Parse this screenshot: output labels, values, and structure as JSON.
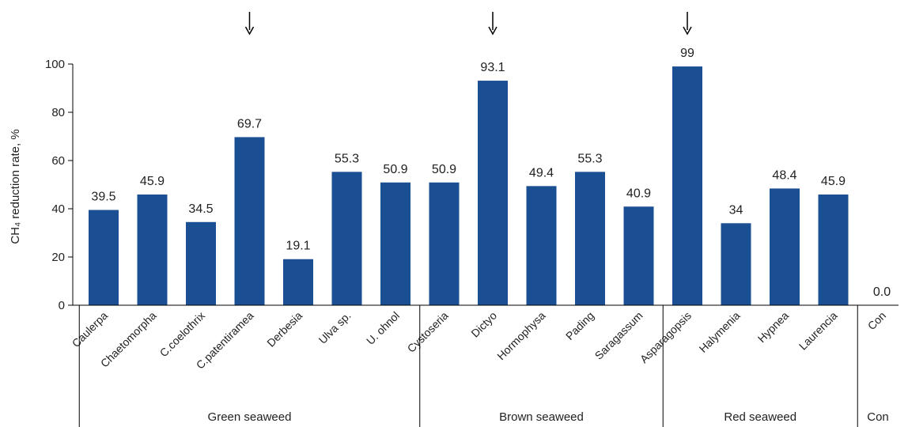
{
  "chart_data": {
    "type": "bar",
    "title": "",
    "ylabel": "CH₄ reduction rate, %",
    "xlabel": "",
    "ylim": [
      0,
      100
    ],
    "yticks": [
      0,
      20,
      40,
      60,
      80,
      100
    ],
    "grid": false,
    "bar_color": "#1b4f93",
    "categories": [
      "Caulerpa",
      "Chaetomorpha",
      "C.coelothrix",
      "C.patentiramea",
      "Derbesia",
      "Ulva sp.",
      "U. ohnol",
      "Cystoseria",
      "Dictyo",
      "Hormophysa",
      "Pading",
      "Saragassum",
      "Asparagopsis",
      "Halymenia",
      "Hypnea",
      "Laurencia",
      "Con"
    ],
    "values": [
      39.5,
      45.9,
      34.5,
      69.7,
      19.1,
      55.3,
      50.9,
      50.9,
      93.1,
      49.4,
      55.3,
      40.9,
      99,
      34,
      48.4,
      45.9,
      0.0
    ],
    "value_labels": [
      "39.5",
      "45.9",
      "34.5",
      "69.7",
      "19.1",
      "55.3",
      "50.9",
      "50.9",
      "93.1",
      "49.4",
      "55.3",
      "40.9",
      "99",
      "34",
      "48.4",
      "45.9",
      "0.0"
    ],
    "groups": [
      {
        "name": "Green seaweed",
        "categories": [
          "Caulerpa",
          "Chaetomorpha",
          "C.coelothrix",
          "C.patentiramea",
          "Derbesia",
          "Ulva sp.",
          "U. ohnol"
        ]
      },
      {
        "name": "Brown seaweed",
        "categories": [
          "Cystoseria",
          "Dictyo",
          "Hormophysa",
          "Pading",
          "Saragassum"
        ]
      },
      {
        "name": "Red seaweed",
        "categories": [
          "Asparagopsis",
          "Halymenia",
          "Hypnea",
          "Laurencia"
        ]
      },
      {
        "name": "Con",
        "categories": [
          "Con"
        ]
      }
    ],
    "highlighted": [
      "C.patentiramea",
      "Dictyo",
      "Asparagopsis"
    ]
  }
}
